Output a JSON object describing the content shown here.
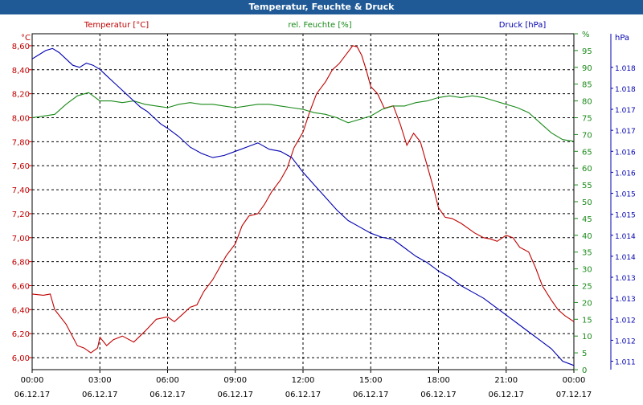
{
  "window": {
    "title": "Temperatur, Feuchte & Druck"
  },
  "chart_data": {
    "type": "line",
    "title": "Temperatur, Feuchte & Druck",
    "grid": true,
    "x_ticks": [
      "00:00|06.12.17",
      "03:00|06.12.17",
      "06:00|06.12.17",
      "09:00|06.12.17",
      "12:00|06.12.17",
      "15:00|06.12.17",
      "18:00|06.12.17",
      "21:00|06.12.17",
      "00:00|07.12.17"
    ],
    "x_tick_hours": [
      0,
      3,
      6,
      9,
      12,
      15,
      18,
      21,
      24
    ],
    "axes": {
      "temperature": {
        "unit": "°C",
        "label": "Temperatur [°C]",
        "color": "#c00000",
        "ylim": [
          5.9,
          8.7
        ],
        "ticks": [
          "6,00",
          "6,20",
          "6,40",
          "6,60",
          "6,80",
          "7,00",
          "7,20",
          "7,40",
          "7,60",
          "7,80",
          "8,00",
          "8,20",
          "8,40",
          "8,60"
        ],
        "tick_values": [
          6.0,
          6.2,
          6.4,
          6.6,
          6.8,
          7.0,
          7.2,
          7.4,
          7.6,
          7.8,
          8.0,
          8.2,
          8.4,
          8.6
        ]
      },
      "humidity": {
        "unit": "%",
        "label": "rel. Feuchte [%]",
        "color": "#1a8a1a",
        "ylim": [
          0,
          100
        ],
        "ticks": [
          "0",
          "5",
          "10",
          "15",
          "20",
          "25",
          "30",
          "35",
          "40",
          "45",
          "50",
          "55",
          "60",
          "65",
          "70",
          "75",
          "80",
          "85",
          "90",
          "95",
          "%"
        ],
        "tick_values": [
          0,
          5,
          10,
          15,
          20,
          25,
          30,
          35,
          40,
          45,
          50,
          55,
          60,
          65,
          70,
          75,
          80,
          85,
          90,
          95,
          100
        ]
      },
      "pressure": {
        "unit": "hPa",
        "label": "Druck [hPa]",
        "color": "#0000b0",
        "ylim": [
          1010.8,
          1018.8
        ],
        "ticks": [
          "1.011",
          "1.012",
          "1.012",
          "1.013",
          "1.013",
          "1.014",
          "1.014",
          "1.015",
          "1.015",
          "1.016",
          "1.016",
          "1.017",
          "1.017",
          "1.018",
          "1.018"
        ],
        "tick_values": [
          1011.0,
          1011.5,
          1012.0,
          1012.5,
          1013.0,
          1013.5,
          1014.0,
          1014.5,
          1015.0,
          1015.5,
          1016.0,
          1016.5,
          1017.0,
          1017.5,
          1018.0
        ]
      }
    },
    "series": [
      {
        "name": "Temperatur [°C]",
        "axis": "temperature",
        "color": "#c00000",
        "x": [
          0,
          0.5,
          0.8,
          1.0,
          1.5,
          2.0,
          2.3,
          2.6,
          2.9,
          3.0,
          3.3,
          3.6,
          4.0,
          4.5,
          5.0,
          5.5,
          6.0,
          6.3,
          6.6,
          7.0,
          7.3,
          7.6,
          8.0,
          8.3,
          8.6,
          9.0,
          9.3,
          9.6,
          10.0,
          10.3,
          10.6,
          11.0,
          11.3,
          11.6,
          12.0,
          12.3,
          12.6,
          13.0,
          13.3,
          13.6,
          14.0,
          14.2,
          14.4,
          14.6,
          14.8,
          15.0,
          15.3,
          15.6,
          16.0,
          16.3,
          16.6,
          16.9,
          17.2,
          17.5,
          17.8,
          18.0,
          18.3,
          18.6,
          19.0,
          19.3,
          19.6,
          20.0,
          20.3,
          20.6,
          21.0,
          21.3,
          21.6,
          22.0,
          22.3,
          22.6,
          23.0,
          23.3,
          23.6,
          24.0
        ],
        "values": [
          6.53,
          6.52,
          6.53,
          6.4,
          6.28,
          6.1,
          6.08,
          6.04,
          6.08,
          6.17,
          6.1,
          6.15,
          6.18,
          6.13,
          6.22,
          6.32,
          6.34,
          6.3,
          6.35,
          6.42,
          6.44,
          6.55,
          6.65,
          6.75,
          6.85,
          6.95,
          7.1,
          7.18,
          7.2,
          7.28,
          7.38,
          7.48,
          7.58,
          7.75,
          7.88,
          8.05,
          8.2,
          8.3,
          8.4,
          8.45,
          8.55,
          8.6,
          8.59,
          8.52,
          8.4,
          8.26,
          8.2,
          8.08,
          8.1,
          7.95,
          7.77,
          7.87,
          7.8,
          7.6,
          7.4,
          7.25,
          7.17,
          7.16,
          7.12,
          7.08,
          7.04,
          7.0,
          6.99,
          6.97,
          7.02,
          7.0,
          6.92,
          6.88,
          6.75,
          6.6,
          6.48,
          6.4,
          6.35,
          6.3
        ]
      },
      {
        "name": "rel. Feuchte [%]",
        "axis": "humidity",
        "color": "#1a8a1a",
        "x": [
          0,
          0.5,
          1.0,
          1.5,
          2.0,
          2.5,
          3.0,
          3.5,
          4.0,
          4.5,
          5.0,
          5.5,
          6.0,
          6.5,
          7.0,
          7.5,
          8.0,
          8.5,
          9.0,
          9.5,
          10.0,
          10.5,
          11.0,
          11.5,
          12.0,
          12.5,
          13.0,
          13.5,
          14.0,
          14.5,
          15.0,
          15.5,
          16.0,
          16.5,
          17.0,
          17.5,
          18.0,
          18.5,
          19.0,
          19.5,
          20.0,
          20.5,
          21.0,
          21.5,
          22.0,
          22.5,
          23.0,
          23.5,
          24.0
        ],
        "values": [
          75.0,
          75.5,
          76.0,
          79.0,
          81.5,
          82.5,
          80.0,
          80.0,
          79.5,
          80.0,
          79.0,
          78.5,
          78.0,
          79.0,
          79.5,
          79.0,
          79.0,
          78.5,
          78.0,
          78.5,
          79.0,
          79.0,
          78.5,
          78.0,
          77.5,
          76.5,
          76.0,
          75.0,
          73.5,
          74.5,
          75.5,
          77.5,
          78.5,
          78.5,
          79.5,
          80.0,
          81.0,
          81.5,
          81.0,
          81.5,
          81.0,
          80.0,
          79.0,
          78.0,
          76.5,
          73.5,
          70.5,
          68.5,
          68.0
        ]
      },
      {
        "name": "Druck [hPa]",
        "axis": "pressure",
        "color": "#0000b0",
        "x": [
          0,
          0.3,
          0.6,
          0.9,
          1.2,
          1.5,
          1.8,
          2.1,
          2.4,
          2.7,
          3.0,
          3.3,
          3.6,
          3.9,
          4.2,
          4.5,
          4.8,
          5.1,
          5.4,
          5.7,
          6.0,
          6.5,
          7.0,
          7.5,
          8.0,
          8.5,
          9.0,
          9.5,
          10.0,
          10.5,
          11.0,
          11.5,
          12.0,
          12.5,
          13.0,
          13.5,
          14.0,
          14.5,
          15.0,
          15.5,
          16.0,
          16.5,
          17.0,
          17.5,
          18.0,
          18.5,
          19.0,
          19.5,
          20.0,
          20.5,
          21.0,
          21.5,
          22.0,
          22.5,
          23.0,
          23.5,
          24.0
        ],
        "values": [
          1018.2,
          1018.3,
          1018.4,
          1018.45,
          1018.35,
          1018.2,
          1018.05,
          1018.0,
          1018.1,
          1018.05,
          1017.95,
          1017.8,
          1017.65,
          1017.5,
          1017.35,
          1017.2,
          1017.05,
          1016.95,
          1016.8,
          1016.65,
          1016.55,
          1016.35,
          1016.1,
          1015.95,
          1015.85,
          1015.9,
          1016.0,
          1016.1,
          1016.2,
          1016.05,
          1016.0,
          1015.85,
          1015.5,
          1015.2,
          1014.9,
          1014.6,
          1014.35,
          1014.2,
          1014.05,
          1013.95,
          1013.9,
          1013.7,
          1013.5,
          1013.35,
          1013.15,
          1013.0,
          1012.8,
          1012.65,
          1012.5,
          1012.3,
          1012.1,
          1011.9,
          1011.7,
          1011.5,
          1011.3,
          1011.0,
          1010.9
        ]
      }
    ]
  }
}
